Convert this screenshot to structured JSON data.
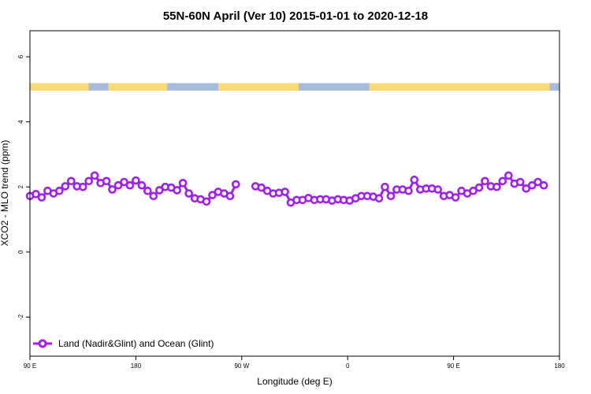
{
  "chart_data": {
    "type": "line",
    "title": "55N-60N April (Ver 10)   2015-01-01 to 2020-12-18",
    "xlabel": "Longitude (deg E)",
    "ylabel": "XCO2 - MLO trend (ppm)",
    "xlim": [
      -90,
      180
    ],
    "ylim": [
      -3.2,
      6.8
    ],
    "x_ticks": [
      {
        "value": -90,
        "label": "90 E"
      },
      {
        "value": -36,
        "label": "180"
      },
      {
        "value": 18,
        "label": "90 W"
      },
      {
        "value": 72,
        "label": "0"
      },
      {
        "value": 126,
        "label": "90 E"
      },
      {
        "value": 180,
        "label": "180"
      }
    ],
    "y_ticks": [
      {
        "value": -2,
        "label": "-2"
      },
      {
        "value": 0,
        "label": "0"
      },
      {
        "value": 2,
        "label": "2"
      },
      {
        "value": 4,
        "label": "4"
      },
      {
        "value": 6,
        "label": "6"
      }
    ],
    "map_strip": {
      "y_range": [
        4.96,
        5.19
      ],
      "land_color": "#fbd974",
      "ocean_color": "#a7bbdc",
      "land_spans": [
        [
          -90,
          -60
        ],
        [
          -50,
          -20
        ],
        [
          6,
          47
        ],
        [
          83,
          175
        ]
      ]
    },
    "series": [
      {
        "name": "Land (Nadir&Glint) and Ocean (Glint)",
        "color": "#a020f0",
        "points": [
          [
            -90,
            1.72
          ],
          [
            -87,
            1.78
          ],
          [
            -84,
            1.68
          ],
          [
            -81,
            1.88
          ],
          [
            -78,
            1.8
          ],
          [
            -75,
            1.88
          ],
          [
            -72,
            2.02
          ],
          [
            -69,
            2.18
          ],
          [
            -66,
            2.02
          ],
          [
            -63,
            2.0
          ],
          [
            -60,
            2.18
          ],
          [
            -57,
            2.35
          ],
          [
            -54,
            2.12
          ],
          [
            -51,
            2.18
          ],
          [
            -48,
            1.92
          ],
          [
            -45,
            2.05
          ],
          [
            -42,
            2.15
          ],
          [
            -39,
            2.05
          ],
          [
            -36,
            2.2
          ],
          [
            -33,
            2.05
          ],
          [
            -30,
            1.88
          ],
          [
            -27,
            1.72
          ],
          [
            -24,
            1.9
          ],
          [
            -21,
            2.0
          ],
          [
            -18,
            1.98
          ],
          [
            -15,
            1.9
          ],
          [
            -12,
            2.12
          ],
          [
            -9,
            1.8
          ],
          [
            -6,
            1.65
          ],
          [
            -3,
            1.62
          ],
          [
            0,
            1.55
          ],
          [
            3,
            1.75
          ],
          [
            6,
            1.85
          ],
          [
            9,
            1.8
          ],
          [
            12,
            1.72
          ],
          [
            15,
            2.08
          ],
          [
            null,
            null
          ],
          [
            25,
            2.02
          ],
          [
            28,
            1.98
          ],
          [
            31,
            1.88
          ],
          [
            34,
            1.8
          ],
          [
            37,
            1.82
          ],
          [
            40,
            1.85
          ],
          [
            43,
            1.52
          ],
          [
            46,
            1.6
          ],
          [
            49,
            1.6
          ],
          [
            52,
            1.66
          ],
          [
            55,
            1.6
          ],
          [
            58,
            1.62
          ],
          [
            61,
            1.62
          ],
          [
            64,
            1.58
          ],
          [
            67,
            1.62
          ],
          [
            70,
            1.6
          ],
          [
            73,
            1.58
          ],
          [
            76,
            1.65
          ],
          [
            79,
            1.72
          ],
          [
            82,
            1.72
          ],
          [
            85,
            1.7
          ],
          [
            88,
            1.65
          ],
          [
            91,
            2.0
          ],
          [
            94,
            1.72
          ],
          [
            97,
            1.92
          ],
          [
            100,
            1.92
          ],
          [
            103,
            1.88
          ],
          [
            106,
            2.22
          ],
          [
            109,
            1.92
          ],
          [
            112,
            1.95
          ],
          [
            115,
            1.95
          ],
          [
            118,
            1.92
          ],
          [
            121,
            1.72
          ],
          [
            124,
            1.75
          ],
          [
            127,
            1.68
          ],
          [
            130,
            1.88
          ],
          [
            133,
            1.8
          ],
          [
            136,
            1.88
          ],
          [
            139,
            1.98
          ],
          [
            142,
            2.18
          ],
          [
            145,
            2.02
          ],
          [
            148,
            2.0
          ],
          [
            151,
            2.18
          ],
          [
            154,
            2.35
          ],
          [
            157,
            2.1
          ],
          [
            160,
            2.15
          ],
          [
            163,
            1.95
          ],
          [
            166,
            2.05
          ],
          [
            169,
            2.15
          ],
          [
            172,
            2.05
          ]
        ]
      }
    ],
    "legend": {
      "position": "bottom-left"
    },
    "grid": false
  }
}
